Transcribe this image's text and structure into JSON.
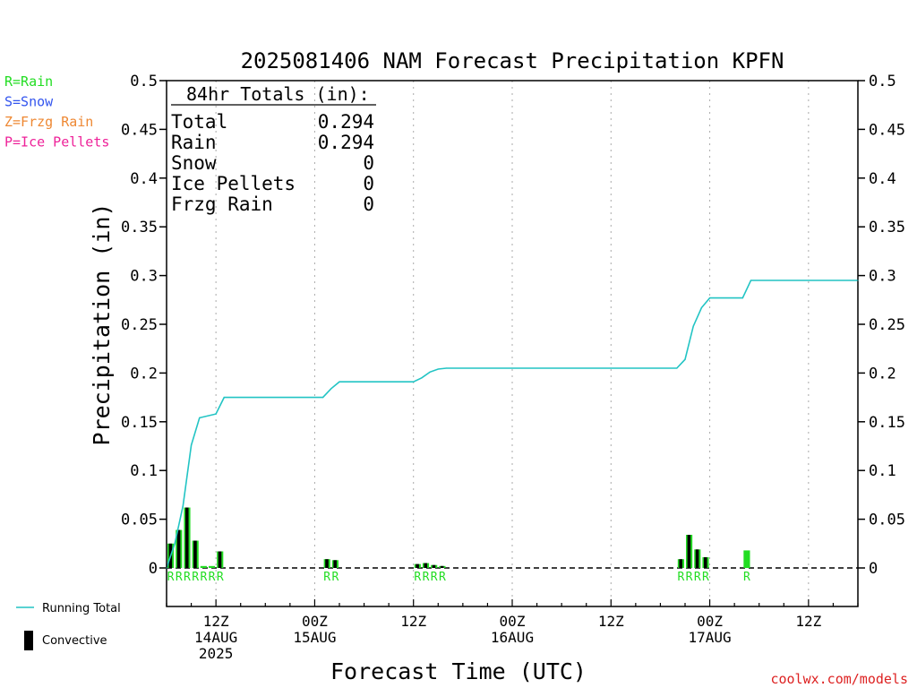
{
  "chart_data": {
    "type": "bar",
    "title": "2025081406 NAM Forecast Precipitation KPFN",
    "ylabel": "Precipitation (in)",
    "xlabel": "Forecast Time (UTC)",
    "ylim": [
      0,
      0.5
    ],
    "y_ticks": [
      0,
      0.05,
      0.1,
      0.15,
      0.2,
      0.25,
      0.3,
      0.35,
      0.4,
      0.45,
      0.5
    ],
    "y_tick_labels": [
      "0",
      "0.05",
      "0.1",
      "0.15",
      "0.2",
      "0.25",
      "0.3",
      "0.35",
      "0.4",
      "0.45",
      "0.5"
    ],
    "xlim_hours": [
      6,
      90
    ],
    "x_ticks": [
      {
        "hour": 12,
        "lines": [
          "12Z",
          "14AUG",
          "2025"
        ]
      },
      {
        "hour": 24,
        "lines": [
          "00Z",
          "15AUG"
        ]
      },
      {
        "hour": 36,
        "lines": [
          "12Z"
        ]
      },
      {
        "hour": 48,
        "lines": [
          "00Z",
          "16AUG"
        ]
      },
      {
        "hour": 60,
        "lines": [
          "12Z"
        ]
      },
      {
        "hour": 72,
        "lines": [
          "00Z",
          "17AUG"
        ]
      },
      {
        "hour": 84,
        "lines": [
          "12Z"
        ]
      }
    ],
    "grid": true,
    "totals": {
      "heading": "84hr Totals (in):",
      "rows": [
        {
          "label": "Total",
          "value": "0.294"
        },
        {
          "label": "Rain",
          "value": "0.294"
        },
        {
          "label": "Snow",
          "value": "0"
        },
        {
          "label": "Ice Pellets",
          "value": "0"
        },
        {
          "label": "Frzg Rain",
          "value": "0"
        }
      ]
    },
    "precip_legend": [
      {
        "text": "R=Rain",
        "color": "#22dd22"
      },
      {
        "text": "S=Snow",
        "color": "#3355ee"
      },
      {
        "text": "Z=Frzg Rain",
        "color": "#ee8833"
      },
      {
        "text": "P=Ice Pellets",
        "color": "#ee2299"
      }
    ],
    "series_legend": [
      {
        "text": "Running Total",
        "kind": "line",
        "color": "#22c4c4"
      },
      {
        "text": "Convective",
        "kind": "bar",
        "color": "#000000"
      }
    ],
    "precip_bars": [
      {
        "hour": 7,
        "total": 0.025,
        "convective": 0.025,
        "type": "R"
      },
      {
        "hour": 8,
        "total": 0.039,
        "convective": 0.039,
        "type": "R"
      },
      {
        "hour": 9,
        "total": 0.062,
        "convective": 0.062,
        "type": "R"
      },
      {
        "hour": 10,
        "total": 0.028,
        "convective": 0.028,
        "type": "R"
      },
      {
        "hour": 11,
        "total": 0.002,
        "convective": 0.0,
        "type": "R"
      },
      {
        "hour": 12,
        "total": 0.002,
        "convective": 0.0,
        "type": "R"
      },
      {
        "hour": 13,
        "total": 0.017,
        "convective": 0.017,
        "type": "R"
      },
      {
        "hour": 26,
        "total": 0.009,
        "convective": 0.009,
        "type": "R"
      },
      {
        "hour": 27,
        "total": 0.008,
        "convective": 0.008,
        "type": "R"
      },
      {
        "hour": 37,
        "total": 0.004,
        "convective": 0.004,
        "type": "R"
      },
      {
        "hour": 38,
        "total": 0.005,
        "convective": 0.005,
        "type": "R"
      },
      {
        "hour": 39,
        "total": 0.003,
        "convective": 0.003,
        "type": "R"
      },
      {
        "hour": 40,
        "total": 0.002,
        "convective": 0.002,
        "type": "R"
      },
      {
        "hour": 69,
        "total": 0.009,
        "convective": 0.009,
        "type": "R"
      },
      {
        "hour": 70,
        "total": 0.034,
        "convective": 0.034,
        "type": "R"
      },
      {
        "hour": 71,
        "total": 0.019,
        "convective": 0.019,
        "type": "R"
      },
      {
        "hour": 72,
        "total": 0.011,
        "convective": 0.011,
        "type": "R"
      },
      {
        "hour": 77,
        "total": 0.018,
        "convective": 0.0,
        "type": "R"
      }
    ],
    "running_total": [
      {
        "hour": 6,
        "value": 0.0
      },
      {
        "hour": 7,
        "value": 0.025
      },
      {
        "hour": 8,
        "value": 0.064
      },
      {
        "hour": 9,
        "value": 0.126
      },
      {
        "hour": 10,
        "value": 0.154
      },
      {
        "hour": 12,
        "value": 0.158
      },
      {
        "hour": 13,
        "value": 0.175
      },
      {
        "hour": 25,
        "value": 0.175
      },
      {
        "hour": 26,
        "value": 0.184
      },
      {
        "hour": 27,
        "value": 0.191
      },
      {
        "hour": 36,
        "value": 0.191
      },
      {
        "hour": 37,
        "value": 0.195
      },
      {
        "hour": 38,
        "value": 0.201
      },
      {
        "hour": 39,
        "value": 0.204
      },
      {
        "hour": 40,
        "value": 0.205
      },
      {
        "hour": 68,
        "value": 0.205
      },
      {
        "hour": 69,
        "value": 0.214
      },
      {
        "hour": 70,
        "value": 0.248
      },
      {
        "hour": 71,
        "value": 0.267
      },
      {
        "hour": 72,
        "value": 0.277
      },
      {
        "hour": 76,
        "value": 0.277
      },
      {
        "hour": 77,
        "value": 0.295
      },
      {
        "hour": 90,
        "value": 0.295
      }
    ],
    "colors": {
      "rain": "#22dd22",
      "running_total": "#22c4c4",
      "convective": "#000000",
      "grid": "#aaaaaa",
      "credit": "#dd2222"
    }
  },
  "footer": {
    "credit": "coolwx.com/models"
  }
}
